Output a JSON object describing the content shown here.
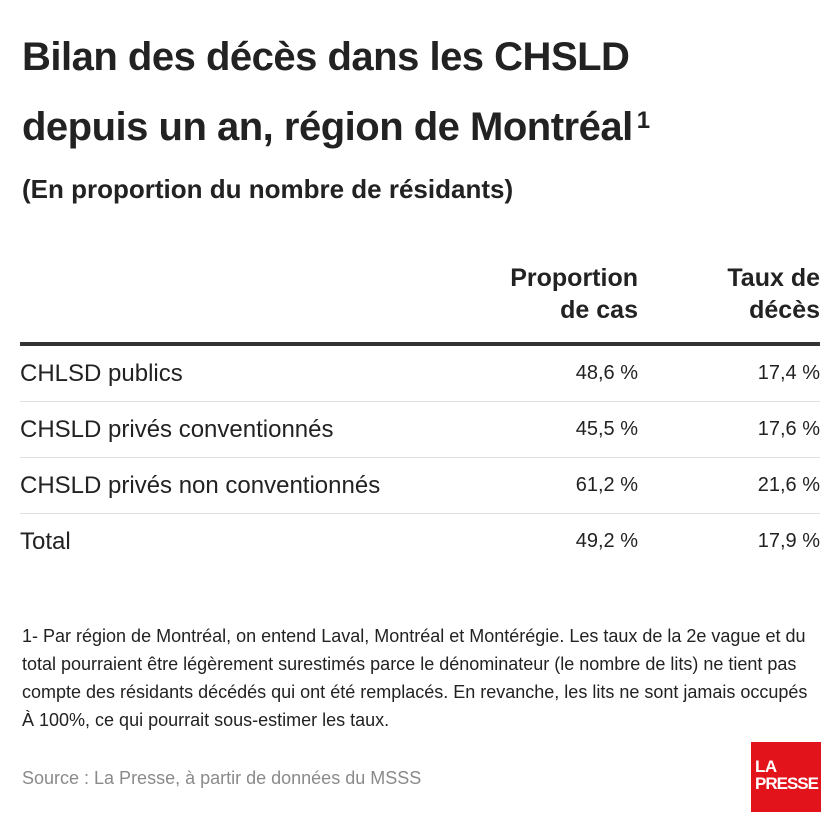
{
  "title": {
    "line1": "Bilan des décès dans les CHSLD",
    "line2": "depuis un an, région de Montréal",
    "superscript": "1"
  },
  "subtitle": "(En proportion du nombre de résidants)",
  "table": {
    "headers": {
      "label": "",
      "proportion_line1": "Proportion",
      "proportion_line2": "de cas",
      "taux_line1": "Taux de",
      "taux_line2": "décès"
    },
    "rows": [
      {
        "label": "CHLSD publics",
        "proportion": "48,6 %",
        "taux": "17,4 %"
      },
      {
        "label": "CHSLD privés conventionnés",
        "proportion": "45,5 %",
        "taux": "17,6 %"
      },
      {
        "label": "CHSLD privés non conventionnés",
        "proportion": "61,2 %",
        "taux": "21,6 %"
      },
      {
        "label": "Total",
        "proportion": "49,2 %",
        "taux": "17,9 %"
      }
    ]
  },
  "footnote": "1- Par région de Montréal, on entend Laval, Montréal et Montérégie. Les taux de la 2e vague et du total pourraient être légèrement surestimés parce le dénominateur (le nombre de lits) ne tient pas compte des résidants décédés qui ont été remplacés. En revanche, les lits ne sont jamais occupés À 100%, ce qui pourrait sous-estimer les taux.",
  "source": "Source : La Presse, à partir de données du MSSS",
  "logo": {
    "line1": "LA",
    "line2": "PRESSE",
    "color": "#e3131b"
  }
}
